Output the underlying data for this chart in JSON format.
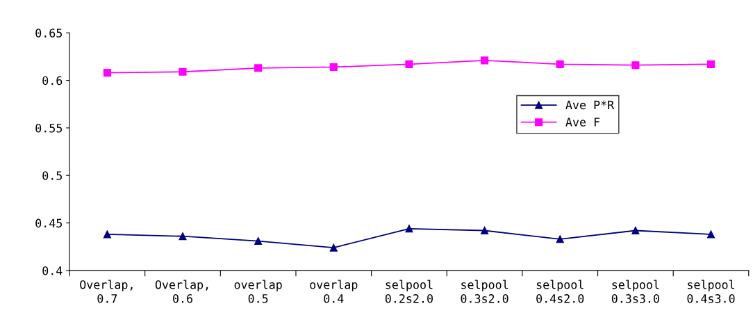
{
  "chart_data": {
    "type": "line",
    "categories": [
      "Overlap, 0.7",
      "Overlap, 0.6",
      "overlap 0.5",
      "overlap 0.4",
      "selpool 0.2s2.0",
      "selpool 0.3s2.0",
      "selpool 0.4s2.0",
      "selpool 0.3s3.0",
      "selpool 0.4s3.0"
    ],
    "series": [
      {
        "name": "Ave P*R",
        "color": "#000080",
        "marker": "triangle",
        "values": [
          0.438,
          0.436,
          0.431,
          0.424,
          0.444,
          0.442,
          0.433,
          0.442,
          0.438
        ]
      },
      {
        "name": "Ave F",
        "color": "#ff00ff",
        "marker": "square",
        "values": [
          0.608,
          0.609,
          0.613,
          0.614,
          0.617,
          0.621,
          0.617,
          0.616,
          0.617
        ]
      }
    ],
    "ylim": [
      0.4,
      0.65
    ],
    "yticks": [
      0.4,
      0.45,
      0.5,
      0.55,
      0.6,
      0.65
    ],
    "grid": false,
    "legend": "right",
    "line_style": "solid"
  }
}
